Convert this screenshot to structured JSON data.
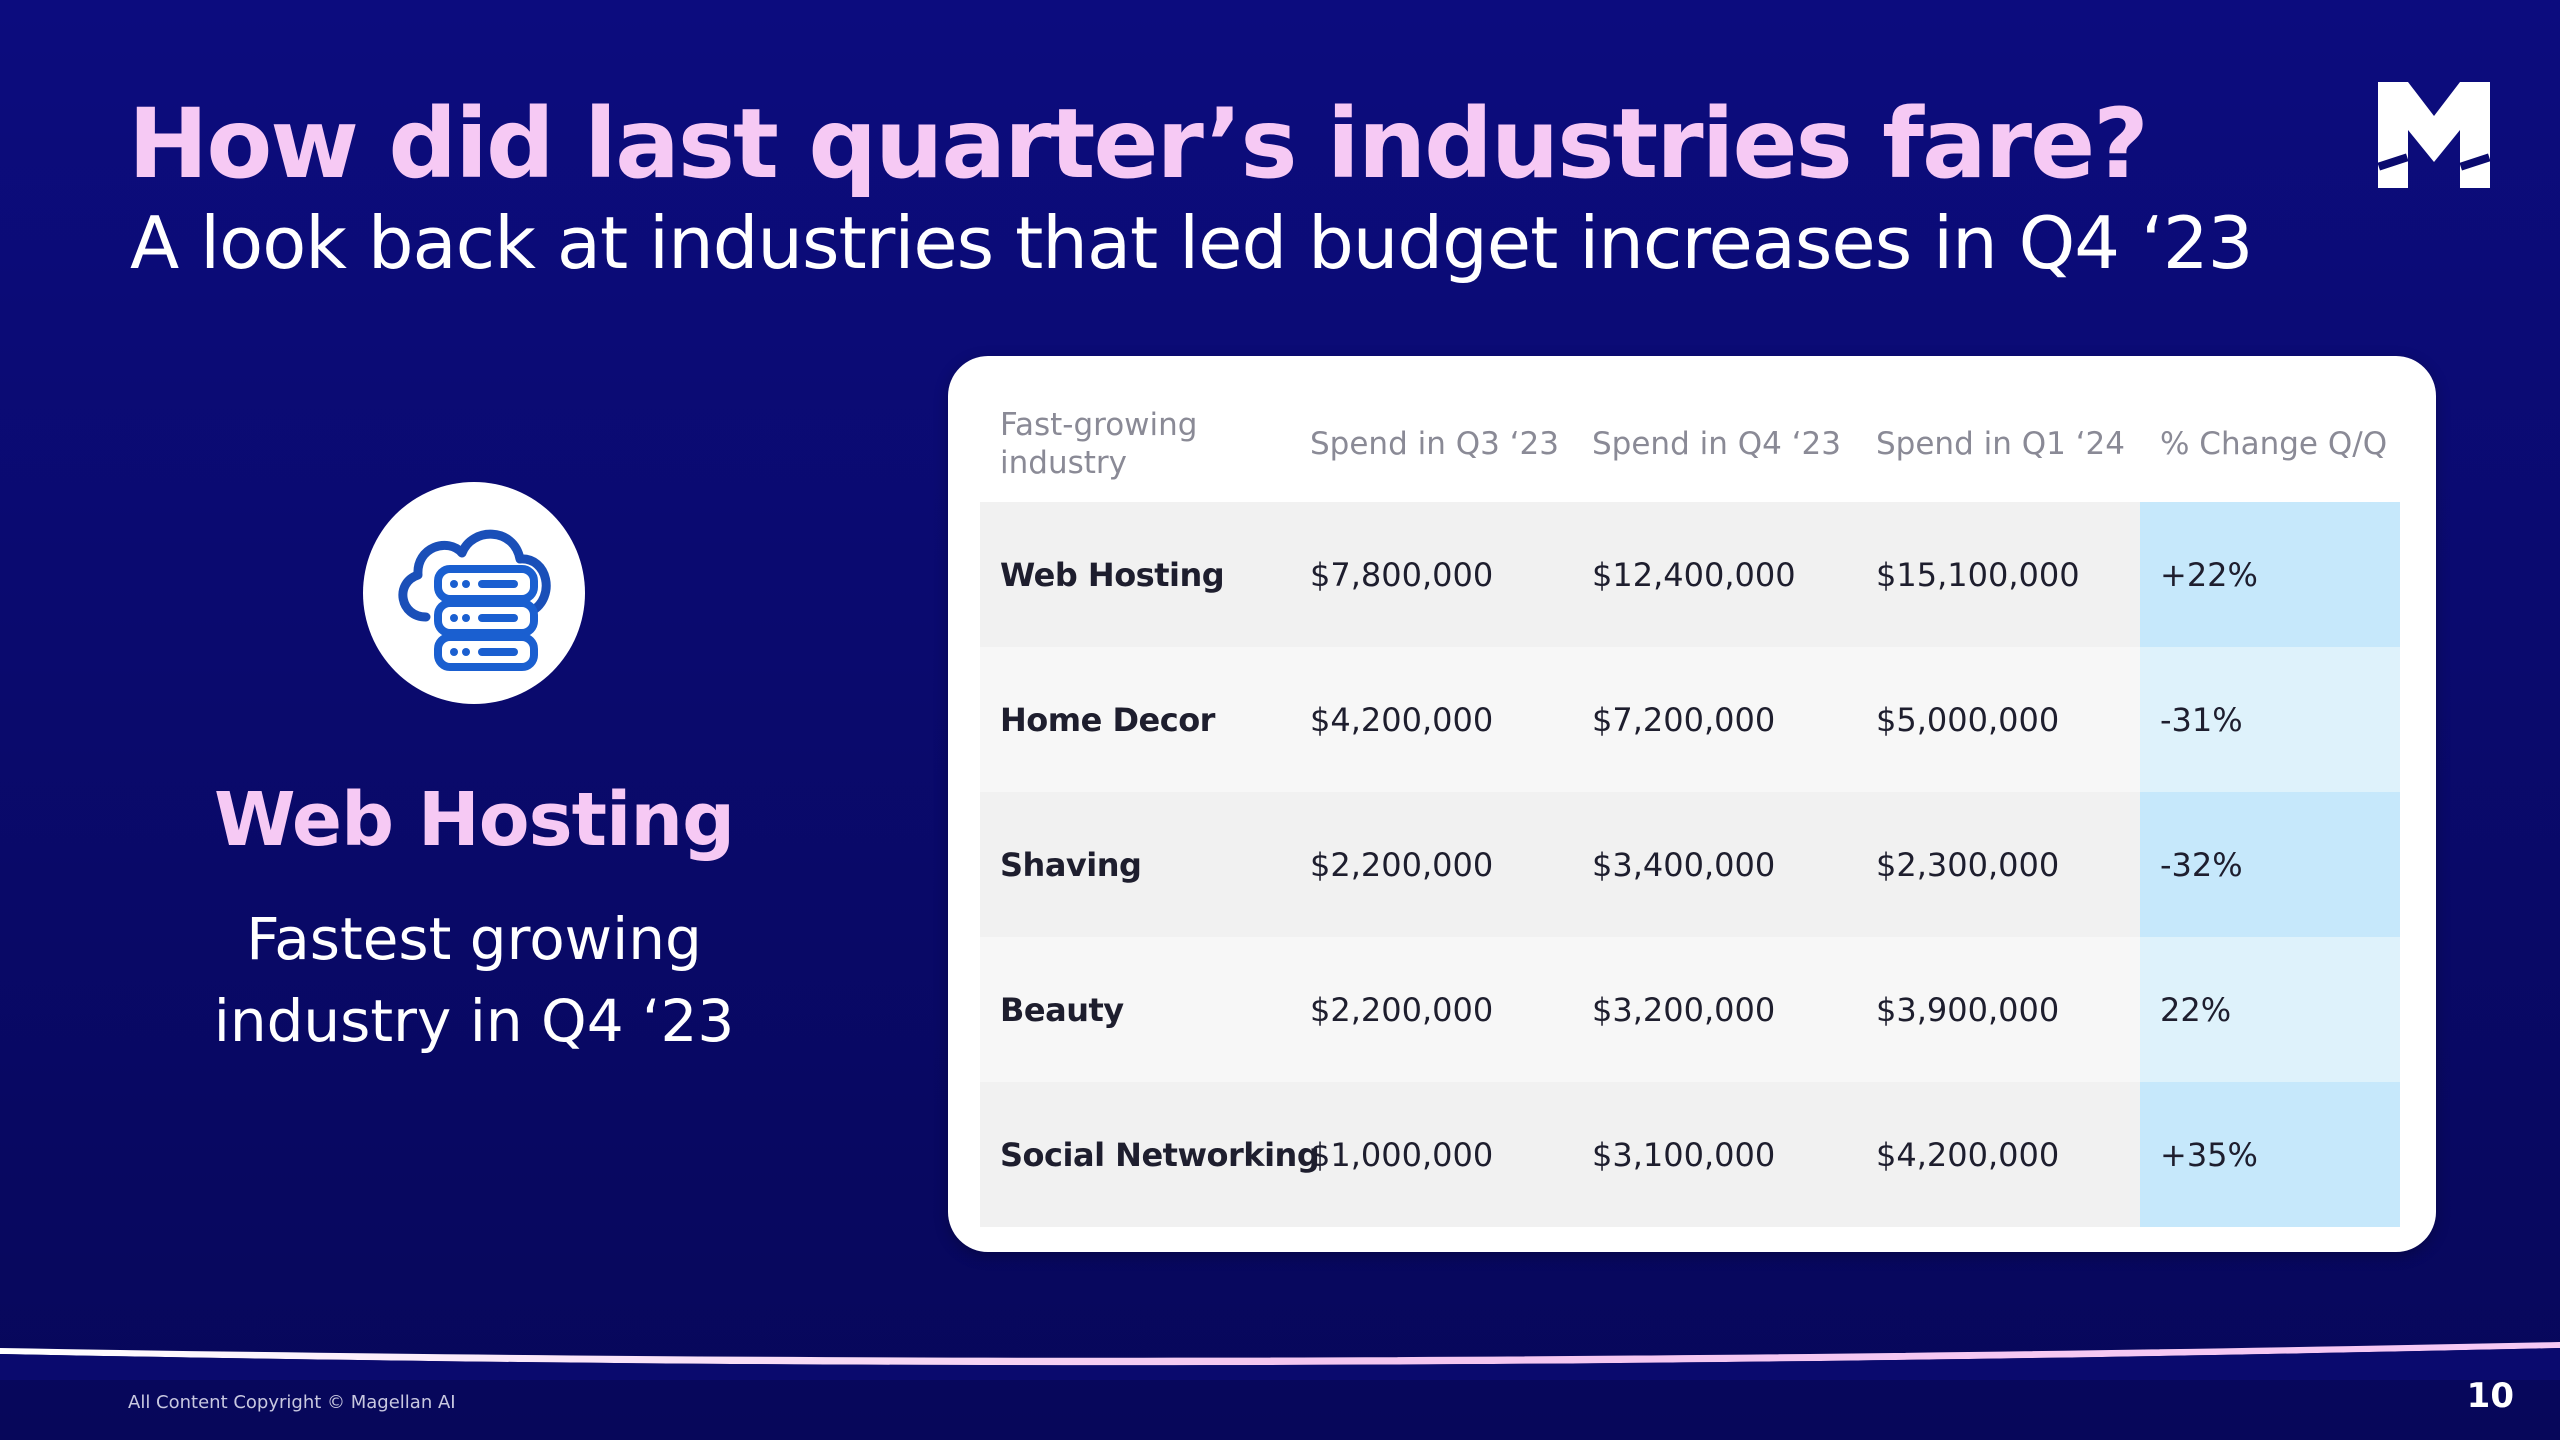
{
  "header": {
    "title": "How did last quarter’s industries fare?",
    "subtitle": "A look back at industries that led budget increases in Q4 ‘23"
  },
  "logo": {
    "icon": "magellan-m-logo-icon"
  },
  "highlight": {
    "icon": "cloud-server-icon",
    "title": "Web Hosting",
    "subtitle_line1": "Fastest growing",
    "subtitle_line2": "industry in Q4 ‘23"
  },
  "table": {
    "headers": [
      "Fast-growing industry",
      "Spend in Q3 ‘23",
      "Spend in Q4 ‘23",
      "Spend in Q1 ‘24",
      "% Change Q/Q"
    ],
    "rows": [
      [
        "Web Hosting",
        "$7,800,000",
        "$12,400,000",
        "$15,100,000",
        "+22%"
      ],
      [
        "Home Decor",
        "$4,200,000",
        "$7,200,000",
        "$5,000,000",
        "-31%"
      ],
      [
        "Shaving",
        "$2,200,000",
        "$3,400,000",
        "$2,300,000",
        "-32%"
      ],
      [
        "Beauty",
        "$2,200,000",
        "$3,200,000",
        "$3,900,000",
        "22%"
      ],
      [
        "Social Networking",
        "$1,000,000",
        "$3,100,000",
        "$4,200,000",
        "+35%"
      ]
    ]
  },
  "colors": {
    "background": "#0a0a6e",
    "accent_pink": "#f6c9f4",
    "highlight_column": "#c6e8fb",
    "icon_blue": "#1a5fd0"
  },
  "footer": {
    "copyright": "All Content Copyright © Magellan AI",
    "page_number": "10"
  }
}
